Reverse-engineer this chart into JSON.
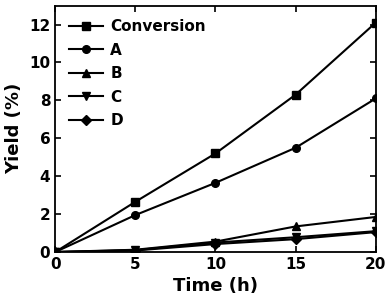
{
  "time": [
    0,
    5,
    10,
    15,
    20
  ],
  "conversion": [
    0,
    2.65,
    5.2,
    8.3,
    12.1
  ],
  "A": [
    0,
    1.95,
    3.65,
    5.5,
    8.1
  ],
  "B": [
    0,
    0.12,
    0.55,
    1.35,
    1.85
  ],
  "C": [
    0,
    0.1,
    0.5,
    0.78,
    1.1
  ],
  "D": [
    0,
    0.08,
    0.42,
    0.68,
    1.05
  ],
  "xlabel": "Time (h)",
  "ylabel": "Yield (%)",
  "xlim": [
    0,
    20
  ],
  "ylim": [
    0,
    13
  ],
  "yticks": [
    0,
    2,
    4,
    6,
    8,
    10,
    12
  ],
  "xticks": [
    0,
    5,
    10,
    15,
    20
  ],
  "legend_labels": [
    "Conversion",
    "A",
    "B",
    "C",
    "D"
  ],
  "line_color": "#000000",
  "background_color": "#ffffff",
  "label_fontsize": 13,
  "tick_fontsize": 11,
  "legend_fontsize": 11
}
